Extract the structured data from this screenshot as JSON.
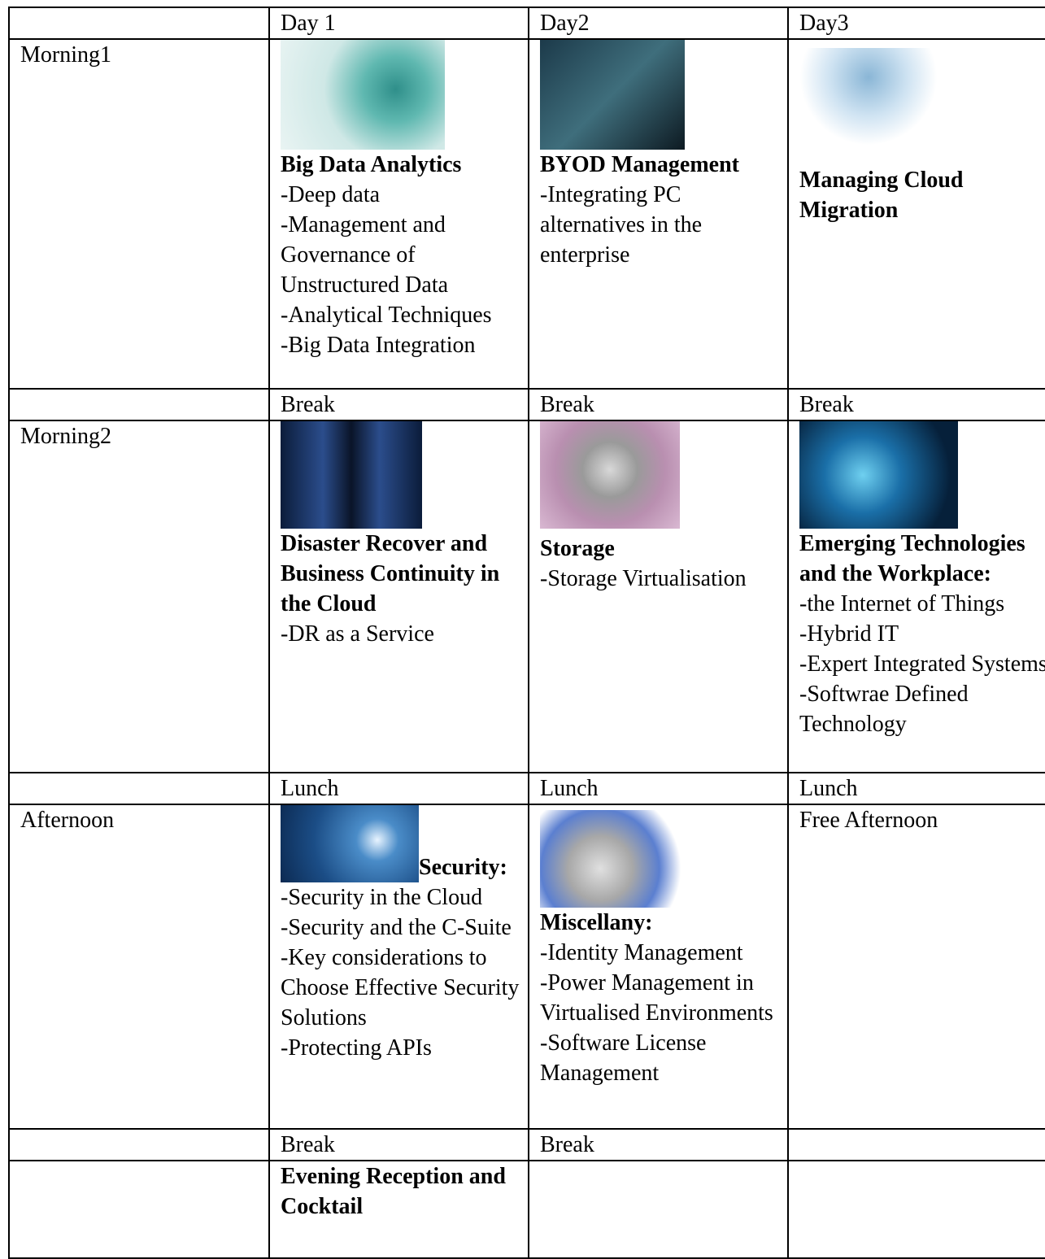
{
  "table": {
    "header": {
      "days": [
        "Day 1",
        "Day2",
        "Day3"
      ]
    },
    "rows": [
      {
        "label": "Morning1",
        "cells": [
          {
            "title": "Big Data Analytics",
            "items": [
              "-Deep data",
              "-Management and Governance of Unstructured Data",
              "-Analytical Techniques",
              "-Big Data Integration"
            ]
          },
          {
            "title": "BYOD Management",
            "items": [
              "-Integrating PC alternatives in the enterprise"
            ]
          },
          {
            "title": "Managing Cloud Migration"
          }
        ]
      },
      {
        "cells": [
          {
            "text": "Break"
          },
          {
            "text": "Break"
          },
          {
            "text": "Break"
          }
        ]
      },
      {
        "label": "Morning2",
        "cells": [
          {
            "title": "Disaster Recover and Business Continuity in the Cloud",
            "items": [
              "-DR as a Service"
            ]
          },
          {
            "title": "Storage",
            "items": [
              "-Storage Virtualisation"
            ]
          },
          {
            "title": "Emerging Technologies and the Workplace:",
            "items": [
              "-the Internet of Things",
              "-Hybrid IT",
              "-Expert Integrated Systems",
              "-Softwrae Defined Technology"
            ]
          }
        ]
      },
      {
        "cells": [
          {
            "text": "Lunch"
          },
          {
            "text": "Lunch"
          },
          {
            "text": "Lunch"
          }
        ]
      },
      {
        "label": "Afternoon",
        "cells": [
          {
            "title": "Security:",
            "items": [
              "-Security in the Cloud",
              "-Security and the C-Suite",
              "-Key considerations to Choose Effective Security Solutions",
              "-Protecting APIs"
            ]
          },
          {
            "title": "Miscellany:",
            "items": [
              "-Identity Management",
              "-Power Management in Virtualised Environments",
              "-Software License Management"
            ]
          },
          {
            "text": "Free Afternoon"
          }
        ]
      },
      {
        "cells": [
          {
            "text": "Break"
          },
          {
            "text": "Break"
          },
          null
        ]
      },
      {
        "cells": [
          {
            "title": "Evening Reception and Cocktail"
          },
          null,
          null
        ]
      }
    ]
  }
}
